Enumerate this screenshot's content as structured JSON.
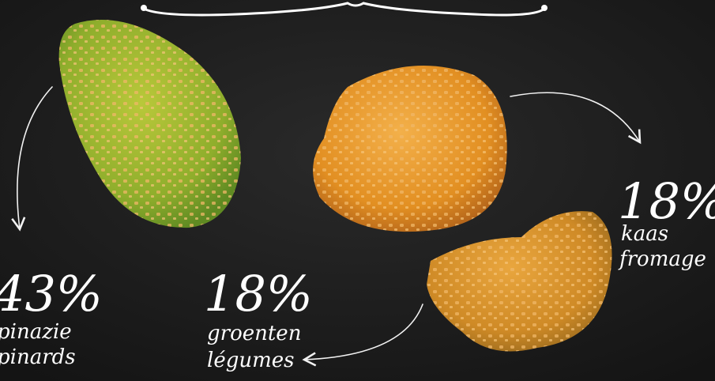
{
  "labels": [
    {
      "percent": "43%",
      "line1": "pinazie",
      "line2": "pinards"
    },
    {
      "percent": "18%",
      "line1": "groenten",
      "line2": "légumes"
    },
    {
      "percent": "18%",
      "line1": "kaas",
      "line2": "fromage"
    }
  ]
}
